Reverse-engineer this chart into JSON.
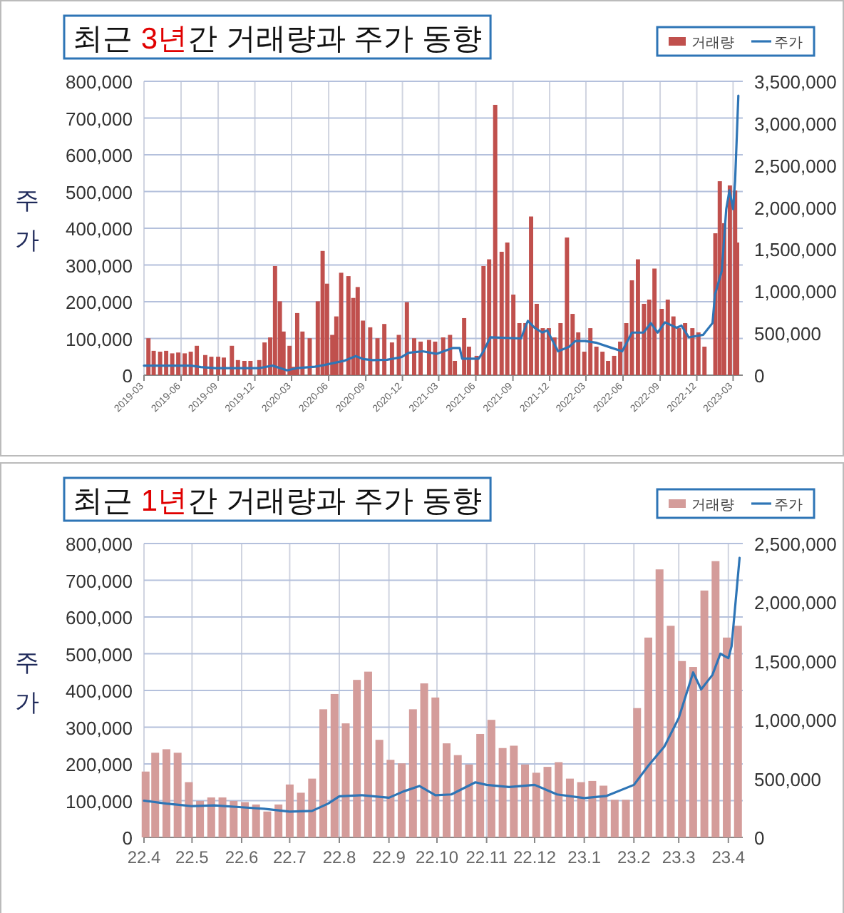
{
  "chart_data": [
    {
      "type": "bar",
      "title": "최근 3년간 거래량과 주가 동향",
      "ylabel": "주가",
      "xlim": [
        "2019-03-01",
        "2023-03-25"
      ],
      "xticks": [
        "2019-03",
        "2019-06",
        "2019-09",
        "2019-12",
        "2020-03",
        "2020-06",
        "2020-09",
        "2020-12",
        "2021-03",
        "2021-06",
        "2021-09",
        "2021-12",
        "2022-03",
        "2022-06",
        "2022-09",
        "2022-12",
        "2023-03"
      ],
      "ylim": [
        0,
        800000
      ],
      "yticks": [
        0,
        {
          "value": 100000,
          "label": "100,000"
        },
        {
          "value": 200000,
          "label": "200,000"
        },
        {
          "value": 300000,
          "label": "300,000"
        },
        {
          "value": 400000,
          "label": "400,000"
        },
        {
          "value": 500000,
          "label": "500,000"
        },
        {
          "value": 600000,
          "label": "600,000"
        },
        {
          "value": 700000,
          "label": "700,000"
        },
        {
          "value": 800000,
          "label": "800,000"
        }
      ],
      "y2lim": [
        0,
        3500000
      ],
      "y2ticks": [
        0,
        {
          "value": 500000,
          "label": "500,000"
        },
        {
          "value": 1000000,
          "label": "1,000,000"
        },
        {
          "value": 1500000,
          "label": "1,500,000"
        },
        {
          "value": 2000000,
          "label": "2,000,000"
        },
        {
          "value": 2500000,
          "label": "2,500,000"
        },
        {
          "value": 3000000,
          "label": "3,000,000"
        },
        {
          "value": 3500000,
          "label": "3,500,000"
        }
      ],
      "grid": true,
      "legend": "top right",
      "series": [
        {
          "name": "거래량",
          "axis": "y2",
          "color": "#c0504d",
          "x": [
            "2019-03-12",
            "2019-03-25",
            "2019-04-10",
            "2019-04-25",
            "2019-05-10",
            "2019-05-25",
            "2019-06-10",
            "2019-06-25",
            "2019-07-10",
            "2019-07-31",
            "2019-08-15",
            "2019-09-01",
            "2019-09-15",
            "2019-10-05",
            "2019-10-20",
            "2019-11-05",
            "2019-11-20",
            "2019-12-12",
            "2019-12-25",
            "2020-01-08",
            "2020-01-20",
            "2020-02-01",
            "2020-02-10",
            "2020-02-25",
            "2020-03-05",
            "2020-03-15",
            "2020-03-28",
            "2020-04-15",
            "2020-05-05",
            "2020-05-17",
            "2020-05-28",
            "2020-06-10",
            "2020-06-20",
            "2020-07-02",
            "2020-07-20",
            "2020-08-01",
            "2020-08-12",
            "2020-08-25",
            "2020-09-12",
            "2020-09-30",
            "2020-10-17",
            "2020-11-05",
            "2020-11-22",
            "2020-12-12",
            "2020-12-30",
            "2021-01-15",
            "2021-02-05",
            "2021-02-20",
            "2021-03-12",
            "2021-03-29",
            "2021-04-10",
            "2021-04-20",
            "2021-05-03",
            "2021-05-15",
            "2021-06-03",
            "2021-06-20",
            "2021-07-04",
            "2021-07-19",
            "2021-08-04",
            "2021-08-18",
            "2021-09-02",
            "2021-09-17",
            "2021-10-02",
            "2021-10-16",
            "2021-10-30",
            "2021-11-14",
            "2021-11-29",
            "2021-12-13",
            "2021-12-28",
            "2022-01-13",
            "2022-01-27",
            "2022-02-10",
            "2022-02-25",
            "2022-03-12",
            "2022-03-27",
            "2022-04-11",
            "2022-04-25",
            "2022-05-10",
            "2022-05-25",
            "2022-06-09",
            "2022-06-23",
            "2022-07-08",
            "2022-07-23",
            "2022-08-05",
            "2022-08-18",
            "2022-09-05",
            "2022-09-20",
            "2022-10-04",
            "2022-10-18",
            "2022-11-02",
            "2022-11-20",
            "2022-12-05",
            "2022-12-20",
            "2023-01-16",
            "2023-01-27",
            "2023-02-07",
            "2023-02-21",
            "2023-03-06",
            "2023-03-11"
          ],
          "values": [
            440000,
            290000,
            280000,
            290000,
            260000,
            270000,
            260000,
            280000,
            350000,
            240000,
            220000,
            220000,
            210000,
            350000,
            180000,
            170000,
            170000,
            180000,
            390000,
            450000,
            1300000,
            880000,
            520000,
            350000,
            100000,
            740000,
            520000,
            440000,
            880000,
            1480000,
            1090000,
            480000,
            700000,
            1220000,
            1180000,
            920000,
            1050000,
            650000,
            570000,
            440000,
            610000,
            390000,
            480000,
            870000,
            440000,
            400000,
            420000,
            400000,
            450000,
            480000,
            170000,
            null,
            680000,
            340000,
            230000,
            1300000,
            1380000,
            3220000,
            1470000,
            1580000,
            960000,
            620000,
            620000,
            1890000,
            850000,
            560000,
            560000,
            450000,
            620000,
            1640000,
            730000,
            510000,
            280000,
            560000,
            340000,
            280000,
            170000,
            230000,
            400000,
            620000,
            1130000,
            1380000,
            850000,
            900000,
            1270000,
            790000,
            900000,
            700000,
            560000,
            620000,
            560000,
            510000,
            340000,
            1690000,
            2310000,
            1810000,
            2260000,
            2200000,
            1580000
          ]
        },
        {
          "name": "주가",
          "type": "line",
          "color": "#2e75b6",
          "x": [
            "2019-03-01",
            "2019-06-26",
            "2019-07-20",
            "2019-08-25",
            "2019-12-10",
            "2020-01-14",
            "2020-02-19",
            "2020-03-13",
            "2020-04-28",
            "2020-05-22",
            "2020-07-09",
            "2020-08-07",
            "2020-08-25",
            "2020-09-18",
            "2020-10-24",
            "2020-11-28",
            "2020-12-16",
            "2021-01-20",
            "2021-02-24",
            "2021-04-04",
            "2021-04-22",
            "2021-04-28",
            "2021-06-08",
            "2021-06-20",
            "2021-07-07",
            "2021-09-21",
            "2021-10-08",
            "2021-10-25",
            "2021-11-13",
            "2021-11-25",
            "2021-12-22",
            "2022-01-18",
            "2022-02-03",
            "2022-02-27",
            "2022-03-28",
            "2022-05-02",
            "2022-05-30",
            "2022-06-23",
            "2022-07-22",
            "2022-08-09",
            "2022-08-26",
            "2022-09-13",
            "2022-10-12",
            "2022-10-24",
            "2022-11-11",
            "2022-12-17",
            "2023-01-09",
            "2023-01-15",
            "2023-02-01",
            "2023-02-12",
            "2023-02-20",
            "2023-03-01",
            "2023-03-06",
            "2023-03-14"
          ],
          "values": [
            26000,
            26000,
            22000,
            19000,
            19000,
            26000,
            13000,
            19000,
            23000,
            28000,
            39000,
            52000,
            44000,
            41000,
            42000,
            49000,
            61000,
            65000,
            58000,
            74000,
            74000,
            45000,
            45000,
            65000,
            103000,
            100000,
            148000,
            129000,
            116000,
            122000,
            65000,
            77000,
            93000,
            93000,
            88000,
            75000,
            65000,
            116000,
            116000,
            142000,
            116000,
            144000,
            129000,
            135000,
            103000,
            110000,
            142000,
            219000,
            284000,
            452000,
            503000,
            452000,
            529000,
            761000
          ]
        }
      ]
    },
    {
      "type": "bar",
      "title": "최근 1년간 거래량과 주가 동향",
      "ylabel": "주가",
      "xlim": [
        "2022-04-01",
        "2023-04-10"
      ],
      "xticks": [
        {
          "value": "2022-04",
          "label": "22.4"
        },
        {
          "value": "2022-05",
          "label": "22.5"
        },
        {
          "value": "2022-06",
          "label": "22.6"
        },
        {
          "value": "2022-07",
          "label": "22.7"
        },
        {
          "value": "2022-08",
          "label": "22.8"
        },
        {
          "value": "2022-09",
          "label": "22.9"
        },
        {
          "value": "2022-10",
          "label": "22.10"
        },
        {
          "value": "2022-11",
          "label": "22.11"
        },
        {
          "value": "2022-12",
          "label": "22.12"
        },
        {
          "value": "2023-01",
          "label": "23.1"
        },
        {
          "value": "2023-02",
          "label": "23.2"
        },
        {
          "value": "2023-03",
          "label": "23.3"
        },
        {
          "value": "2023-04",
          "label": "23.4"
        }
      ],
      "ylim": [
        0,
        800000
      ],
      "yticks": [
        0,
        {
          "value": 100000,
          "label": "100,000"
        },
        {
          "value": 200000,
          "label": "200,000"
        },
        {
          "value": 300000,
          "label": "300,000"
        },
        {
          "value": 400000,
          "label": "400,000"
        },
        {
          "value": 500000,
          "label": "500,000"
        },
        {
          "value": 600000,
          "label": "600,000"
        },
        {
          "value": 700000,
          "label": "700,000"
        },
        {
          "value": 800000,
          "label": "800,000"
        }
      ],
      "y2lim": [
        0,
        2500000
      ],
      "y2ticks": [
        0,
        {
          "value": 500000,
          "label": "500,000"
        },
        {
          "value": 1000000,
          "label": "1,000,000"
        },
        {
          "value": 1500000,
          "label": "1,500,000"
        },
        {
          "value": 2000000,
          "label": "2,000,000"
        },
        {
          "value": 2500000,
          "label": "2,500,000"
        }
      ],
      "grid": true,
      "legend": "top right",
      "series": [
        {
          "name": "거래량",
          "axis": "y2",
          "color": "#d49c9a",
          "x": [
            "2022-04-02",
            "2022-04-08",
            "2022-04-15",
            "2022-04-22",
            "2022-04-29",
            "2022-05-06",
            "2022-05-13",
            "2022-05-20",
            "2022-05-27",
            "2022-06-03",
            "2022-06-10",
            "2022-06-17",
            "2022-06-24",
            "2022-07-01",
            "2022-07-08",
            "2022-07-15",
            "2022-07-22",
            "2022-07-29",
            "2022-08-05",
            "2022-08-12",
            "2022-08-19",
            "2022-08-26",
            "2022-09-02",
            "2022-09-09",
            "2022-09-16",
            "2022-09-23",
            "2022-09-30",
            "2022-10-07",
            "2022-10-14",
            "2022-10-21",
            "2022-10-28",
            "2022-11-04",
            "2022-11-11",
            "2022-11-18",
            "2022-11-25",
            "2022-12-02",
            "2022-12-09",
            "2022-12-16",
            "2022-12-23",
            "2022-12-30",
            "2023-01-06",
            "2023-01-13",
            "2023-01-20",
            "2023-01-27",
            "2023-02-03",
            "2023-02-10",
            "2023-02-17",
            "2023-02-24",
            "2023-03-03",
            "2023-03-10",
            "2023-03-17",
            "2023-03-24",
            "2023-03-31",
            "2023-04-07"
          ],
          "values": [
            560000,
            720000,
            750000,
            720000,
            470000,
            310000,
            340000,
            340000,
            310000,
            300000,
            280000,
            220000,
            280000,
            450000,
            380000,
            500000,
            1090000,
            1220000,
            970000,
            1340000,
            1410000,
            830000,
            660000,
            630000,
            1090000,
            1310000,
            1190000,
            800000,
            700000,
            620000,
            880000,
            1000000,
            760000,
            780000,
            620000,
            550000,
            600000,
            640000,
            500000,
            470000,
            480000,
            440000,
            320000,
            320000,
            1100000,
            1700000,
            2280000,
            1800000,
            1500000,
            1450000,
            2100000,
            2350000,
            1700000,
            1800000
          ]
        },
        {
          "name": "주가",
          "type": "line",
          "color": "#2e75b6",
          "x": [
            "2022-04-01",
            "2022-04-15",
            "2022-05-01",
            "2022-05-15",
            "2022-06-01",
            "2022-06-15",
            "2022-07-01",
            "2022-07-15",
            "2022-07-25",
            "2022-08-01",
            "2022-08-15",
            "2022-09-01",
            "2022-09-10",
            "2022-09-20",
            "2022-09-30",
            "2022-10-10",
            "2022-10-25",
            "2022-11-01",
            "2022-11-15",
            "2022-12-01",
            "2022-12-15",
            "2023-01-01",
            "2023-01-15",
            "2023-02-01",
            "2023-02-10",
            "2023-02-20",
            "2023-03-01",
            "2023-03-10",
            "2023-03-15",
            "2023-03-22",
            "2023-03-27",
            "2023-04-01",
            "2023-04-03",
            "2023-04-08"
          ],
          "values": [
            100000,
            92000,
            85000,
            87000,
            82000,
            78000,
            70000,
            72000,
            92000,
            112000,
            115000,
            108000,
            125000,
            140000,
            115000,
            117000,
            150000,
            143000,
            137000,
            143000,
            117000,
            107000,
            113000,
            143000,
            195000,
            247000,
            325000,
            449000,
            403000,
            442000,
            500000,
            488000,
            520000,
            761000
          ]
        }
      ]
    }
  ]
}
